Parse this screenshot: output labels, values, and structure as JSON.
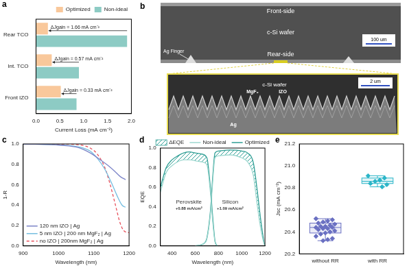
{
  "chart_data": [
    {
      "panel": "a",
      "type": "bar",
      "orientation": "horizontal",
      "categories": [
        "Rear TCO",
        "Int. TCO",
        "Front IZO"
      ],
      "series": [
        {
          "name": "Optimized",
          "color": "#F9C89B",
          "values": [
            0.25,
            0.33,
            0.52
          ]
        },
        {
          "name": "Non-ideal",
          "color": "#8DCBC4",
          "values": [
            1.91,
            0.9,
            0.85
          ]
        }
      ],
      "x_label": "Current Loss (mA cm⁻²)",
      "xlim": [
        0,
        2
      ],
      "xticks": [
        {
          "value": 0,
          "label": "0.0"
        },
        0.5,
        {
          "value": 1,
          "label": "1.0"
        },
        1.5,
        {
          "value": 2,
          "label": "2.0"
        }
      ],
      "legend": "upper right",
      "grid": false,
      "annotations": [
        {
          "category": "Rear TCO",
          "text": "ΔJgain = 1.66 mA cm⁻²"
        },
        {
          "category": "Int. TCO",
          "text": "ΔJgain = 0.57 mA cm⁻²"
        },
        {
          "category": "Front IZO",
          "text": "ΔJgain = 0.33 mA cm⁻²"
        }
      ]
    },
    {
      "panel": "c",
      "type": "line",
      "series": [
        {
          "name": "120 nm IZO | Ag",
          "color": "#7C84C8",
          "line_style": "solid",
          "x": [
            900,
            1000,
            1030,
            1060,
            1080,
            1100,
            1120,
            1140,
            1160,
            1175,
            1190
          ],
          "values": [
            1.0,
            0.99,
            0.98,
            0.96,
            0.93,
            0.89,
            0.84,
            0.79,
            0.73,
            0.68,
            0.65
          ]
        },
        {
          "name": "5 nm IZO | 200 nm MgF₂ | Ag",
          "color": "#74BDE0",
          "line_style": "solid",
          "x": [
            900,
            1000,
            1040,
            1070,
            1090,
            1110,
            1130,
            1150,
            1165,
            1180,
            1190
          ],
          "values": [
            1.0,
            0.99,
            0.98,
            0.96,
            0.93,
            0.86,
            0.76,
            0.62,
            0.5,
            0.4,
            0.38
          ]
        },
        {
          "name": "no IZO | 200nm MgF₂ | Ag",
          "color": "#E8505B",
          "line_style": "dashed",
          "x": [
            900,
            1000,
            1060,
            1090,
            1110,
            1130,
            1145,
            1160,
            1175,
            1185,
            1200
          ],
          "values": [
            1.0,
            1.0,
            0.99,
            0.96,
            0.9,
            0.78,
            0.62,
            0.42,
            0.22,
            0.15,
            0.13
          ]
        }
      ],
      "x_label": "Wavelength (nm)",
      "y_label": "1-R",
      "xlim": [
        900,
        1200
      ],
      "xticks": [
        900,
        1000,
        1100,
        1200
      ],
      "ylim": [
        0,
        1
      ],
      "yticks": [
        {
          "value": 0,
          "label": "0.0"
        },
        0.2,
        0.4,
        0.6,
        0.8,
        {
          "value": 1,
          "label": "1.0"
        }
      ],
      "legend": "lower left",
      "grid": false
    },
    {
      "panel": "d",
      "type": "line",
      "area_label": "ΔEQE",
      "groups": [
        {
          "label": "Perovskite",
          "gain": "+0.88 mA/cm²",
          "x": [
            300,
            350,
            400,
            450,
            500,
            550,
            600,
            650,
            700,
            730,
            750,
            770,
            790
          ],
          "series": [
            {
              "name": "Non-ideal",
              "color": "#9ED8D0",
              "values": [
                0.55,
                0.75,
                0.82,
                0.86,
                0.88,
                0.88,
                0.87,
                0.86,
                0.83,
                0.55,
                0.25,
                0.04,
                0.0
              ]
            },
            {
              "name": "Optimized",
              "color": "#2E9E94",
              "values": [
                0.6,
                0.8,
                0.88,
                0.92,
                0.95,
                0.96,
                0.95,
                0.94,
                0.9,
                0.6,
                0.3,
                0.05,
                0.0
              ]
            }
          ]
        },
        {
          "label": "Silicon",
          "gain": "+1.09 mA/cm²",
          "x": [
            600,
            680,
            700,
            730,
            750,
            770,
            800,
            900,
            1000,
            1050,
            1100,
            1130,
            1160,
            1190,
            1200
          ],
          "series": [
            {
              "name": "Non-ideal",
              "color": "#9ED8D0",
              "values": [
                0.0,
                0.03,
                0.07,
                0.32,
                0.65,
                0.9,
                0.92,
                0.93,
                0.9,
                0.86,
                0.72,
                0.45,
                0.2,
                0.03,
                0.0
              ]
            },
            {
              "name": "Optimized",
              "color": "#2E9E94",
              "values": [
                0.0,
                0.03,
                0.08,
                0.35,
                0.7,
                0.95,
                0.97,
                0.98,
                0.97,
                0.95,
                0.85,
                0.6,
                0.3,
                0.05,
                0.0
              ]
            }
          ]
        }
      ],
      "x_label": "Wavelength (nm)",
      "y_label": "EQE",
      "xlim": [
        300,
        1200
      ],
      "xticks": [
        400,
        600,
        800,
        1000,
        1200
      ],
      "ylim": [
        0,
        1
      ],
      "yticks": [
        {
          "value": 0,
          "label": "0.0"
        },
        0.2,
        0.4,
        0.6,
        0.8,
        {
          "value": 1,
          "label": "1.0"
        }
      ],
      "legend": "top",
      "grid": false
    },
    {
      "panel": "e",
      "type": "box",
      "categories": [
        "without RR",
        "with RR"
      ],
      "colors": [
        "#6A70C2",
        "#2BB5C8"
      ],
      "marker": "diamond",
      "values": [
        [
          20.52,
          20.51,
          20.5,
          20.49,
          20.48,
          20.47,
          20.46,
          20.45,
          20.45,
          20.44,
          20.44,
          20.43,
          20.43,
          20.42,
          20.41,
          20.4,
          20.39,
          20.38,
          20.36,
          20.34,
          20.33,
          20.32
        ],
        [
          20.91,
          20.89,
          20.87,
          20.86,
          20.84,
          20.83,
          20.81
        ]
      ],
      "box": [
        {
          "min": 20.32,
          "q1": 20.39,
          "median": 20.44,
          "q3": 20.48,
          "max": 20.52
        },
        {
          "min": 20.81,
          "q1": 20.84,
          "median": 20.86,
          "q3": 20.89,
          "max": 20.91
        }
      ],
      "y_label": "Jsc (mA cm⁻²)",
      "ylim": [
        20.2,
        21.2
      ],
      "yticks": [
        20.2,
        20.4,
        20.6,
        20.8,
        {
          "value": 21,
          "label": "21.0"
        },
        21.2
      ],
      "grid": false
    }
  ],
  "panel_b": {
    "panel": "b",
    "overview": {
      "labels": [
        "Front-side",
        "c-Si wafer",
        "Rear-side"
      ],
      "scale_bar": "100 um",
      "finger": "Ag Finger"
    },
    "inset": {
      "wafer": "c-Si wafer",
      "scale_bar": "2 um",
      "layers": [
        "MgF₂",
        "IZO",
        "Ag"
      ]
    }
  }
}
